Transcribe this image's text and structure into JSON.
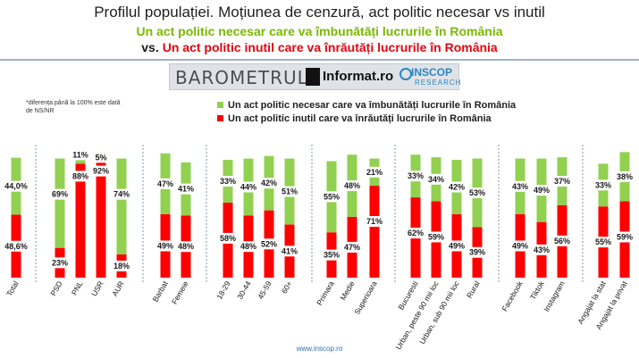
{
  "header": {
    "title": "Profilul populației. Moțiunea de cenzură, act politic necesar vs inutil",
    "subtitle_line1": "Un act politic necesar care va îmbunătăți lucrurile în România",
    "subtitle_vs": "vs.",
    "subtitle_line2": "Un act politic inutil care va înrăutăți lucrurile în România"
  },
  "brand": {
    "barometrul": "BAROMETRUL",
    "informat": "Informat.ro",
    "inscop": "INSCOP",
    "research": "RESEARCH"
  },
  "note": "*diferența până la 100% este dată de NS/NR",
  "footer": "www.inscop.ro",
  "colors": {
    "green": "#92d050",
    "red": "#ff0000",
    "title_green": "#7ab800",
    "title_red": "#e30613"
  },
  "chart_data": {
    "type": "bar",
    "stacked": true,
    "legend_position": "top",
    "categories": [
      "Total",
      "PSD",
      "PNL",
      "USR",
      "AUR",
      "Barbat",
      "Femeie",
      "18-29",
      "30-44",
      "45-59",
      "60+",
      "Primara",
      "Medie",
      "Superioara",
      "Bucuresti",
      "Urban, peste 90 mii loc",
      "Urban, sub 90 mii loc",
      "Rural",
      "Facebook",
      "Tiktok",
      "Instagram",
      "Angajat la stat",
      "Angajat la privat"
    ],
    "groups": [
      [
        "Total"
      ],
      [
        "PSD",
        "PNL",
        "USR",
        "AUR"
      ],
      [
        "Barbat",
        "Femeie"
      ],
      [
        "18-29",
        "30-44",
        "45-59",
        "60+"
      ],
      [
        "Primara",
        "Medie",
        "Superioara"
      ],
      [
        "Bucuresti",
        "Urban, peste 90 mii loc",
        "Urban, sub 90 mii loc",
        "Rural"
      ],
      [
        "Facebook",
        "Tiktok",
        "Instagram"
      ],
      [
        "Angajat la stat",
        "Angajat la privat"
      ]
    ],
    "series": [
      {
        "name": "Un act politic inutil care va înrăutăți lucrurile în România",
        "color": "#ff0000",
        "values": [
          48.6,
          23,
          88,
          92,
          18,
          49,
          48,
          58,
          48,
          52,
          41,
          35,
          47,
          71,
          62,
          59,
          49,
          39,
          49,
          43,
          56,
          55,
          59
        ],
        "labels": [
          "48,6%",
          "23%",
          "88%",
          "92%",
          "18%",
          "49%",
          "48%",
          "58%",
          "48%",
          "52%",
          "41%",
          "35%",
          "47%",
          "71%",
          "62%",
          "59%",
          "49%",
          "39%",
          "49%",
          "43%",
          "56%",
          "55%",
          "59%"
        ]
      },
      {
        "name": "Un act politic necesar care va îmbunătăți lucrurile în România",
        "color": "#92d050",
        "values": [
          44.0,
          69,
          11,
          5,
          74,
          47,
          41,
          33,
          44,
          42,
          51,
          55,
          48,
          21,
          33,
          34,
          42,
          53,
          43,
          49,
          37,
          33,
          38
        ],
        "labels": [
          "44,0%",
          "69%",
          "11%",
          "5%",
          "74%",
          "47%",
          "41%",
          "33%",
          "44%",
          "42%",
          "51%",
          "55%",
          "48%",
          "21%",
          "33%",
          "34%",
          "42%",
          "53%",
          "43%",
          "49%",
          "37%",
          "33%",
          "38%"
        ]
      }
    ],
    "ylim": [
      0,
      100
    ]
  }
}
